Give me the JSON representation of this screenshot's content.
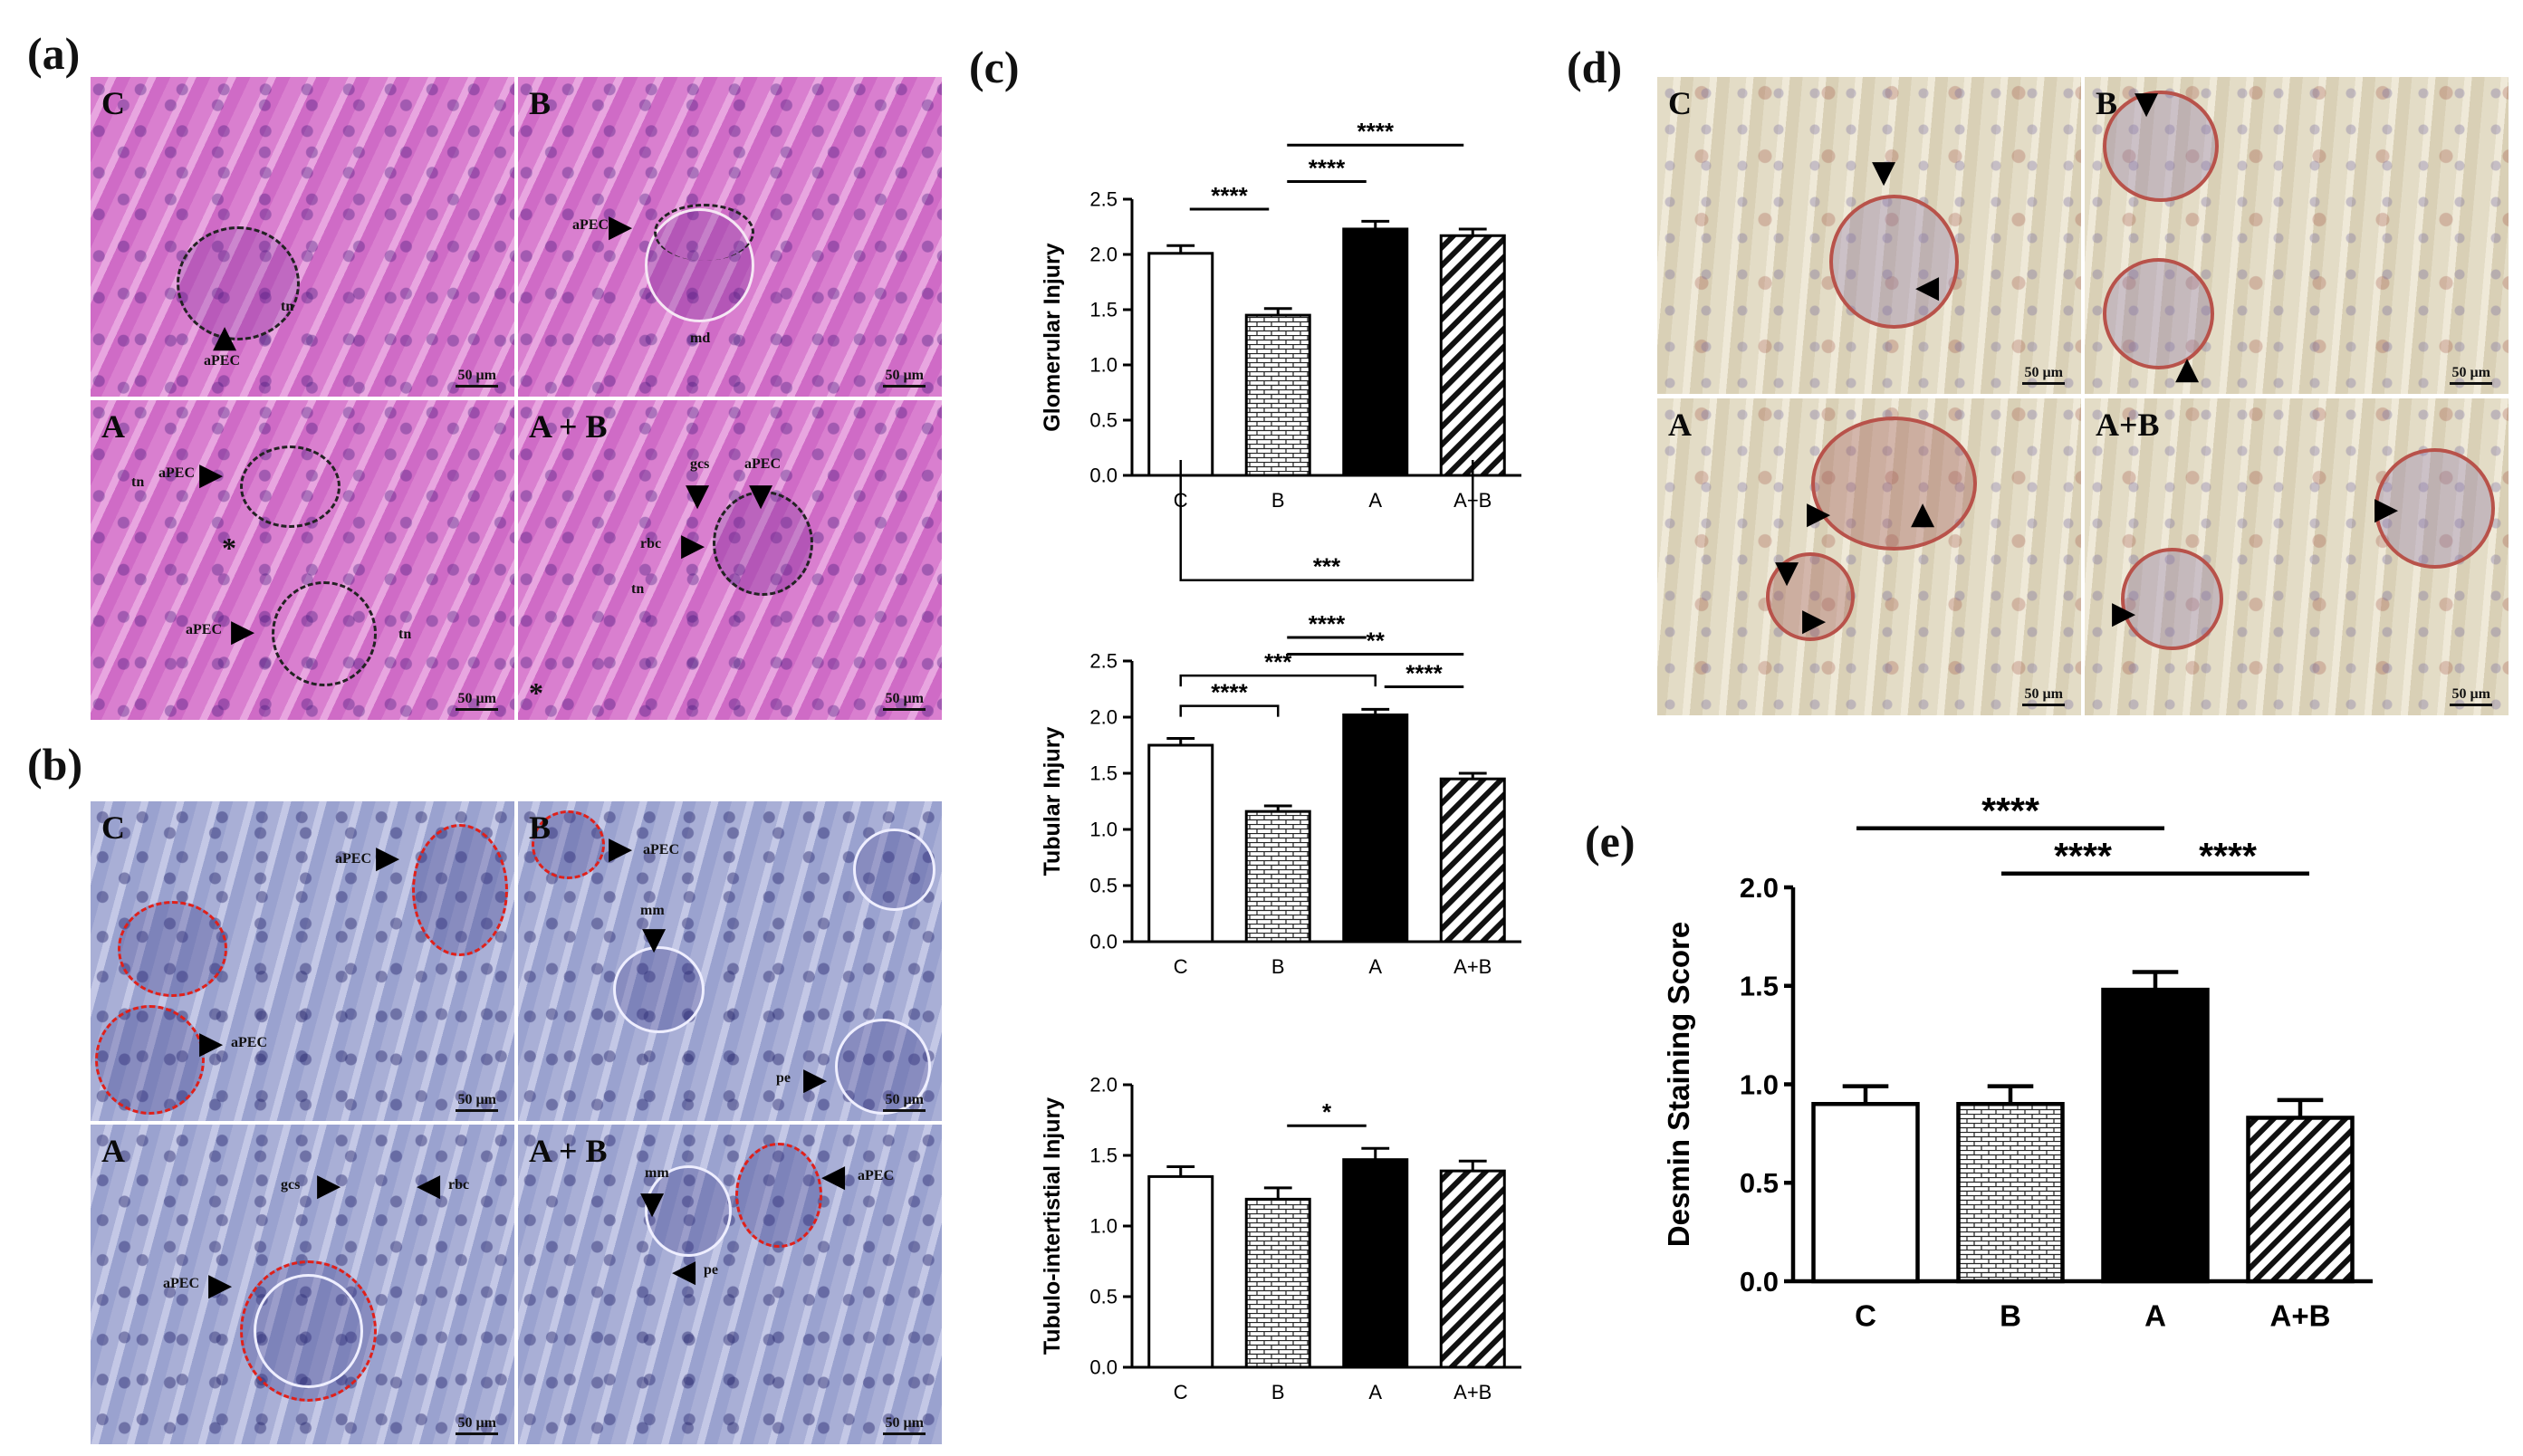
{
  "panels": {
    "a": {
      "letter": "(a)",
      "tiles": [
        {
          "label": "C",
          "scale": "50 µm",
          "annos": [
            "aPEC",
            "tn"
          ]
        },
        {
          "label": "B",
          "scale": "50 µm",
          "annos": [
            "aPEC",
            "md"
          ]
        },
        {
          "label": "A",
          "scale": "50 µm",
          "annos": [
            "aPEC",
            "tn",
            "aPEC",
            "tn",
            "*"
          ]
        },
        {
          "label": "A + B",
          "scale": "50 µm",
          "annos": [
            "gcs",
            "aPEC",
            "rbc",
            "tn",
            "*"
          ]
        }
      ]
    },
    "b": {
      "letter": "(b)",
      "tiles": [
        {
          "label": "C",
          "scale": "50 µm",
          "annos": [
            "aPEC",
            "aPEC"
          ]
        },
        {
          "label": "B",
          "scale": "50 µm",
          "annos": [
            "aPEC",
            "mm",
            "pe"
          ]
        },
        {
          "label": "A",
          "scale": "50 µm",
          "annos": [
            "gcs",
            "rbc",
            "aPEC"
          ]
        },
        {
          "label": "A + B",
          "scale": "50 µm",
          "annos": [
            "mm",
            "aPEC",
            "pe"
          ]
        }
      ]
    },
    "c": {
      "letter": "(c)"
    },
    "d": {
      "letter": "(d)",
      "tiles": [
        {
          "label": "C",
          "scale": "50 µm"
        },
        {
          "label": "B",
          "scale": "50 µm"
        },
        {
          "label": "A",
          "scale": "50 µm"
        },
        {
          "label": "A+B",
          "scale": "50 µm"
        }
      ]
    },
    "e": {
      "letter": "(e)"
    }
  },
  "colors": {
    "he": "#d97fcf",
    "pas": "#a9afd6",
    "desmin": "#e3dcc6",
    "bar_dark": "#000000",
    "bar_light": "#ffffff",
    "dashed_red": "#e0201a"
  },
  "chart_data": [
    {
      "type": "bar",
      "panel": "c",
      "ylabel": "Glomerular Injury",
      "categories": [
        "C",
        "B",
        "A",
        "A+B"
      ],
      "values": [
        2.01,
        1.45,
        2.23,
        2.17
      ],
      "errors": [
        0.07,
        0.06,
        0.07,
        0.06
      ],
      "fills": [
        "white",
        "brick",
        "black",
        "hatch"
      ],
      "ylim": [
        0,
        2.5
      ],
      "yticks": [
        "0.0",
        "0.5",
        "1.0",
        "1.5",
        "2.0",
        "2.5"
      ],
      "significance": [
        {
          "from": 0,
          "to": 1,
          "label": "****",
          "style": "line"
        },
        {
          "from": 1,
          "to": 2,
          "label": "****",
          "style": "line"
        },
        {
          "from": 1,
          "to": 3,
          "label": "****",
          "style": "line"
        }
      ]
    },
    {
      "type": "bar",
      "panel": "c",
      "ylabel": "Tubular Injury",
      "categories": [
        "C",
        "B",
        "A",
        "A+B"
      ],
      "values": [
        1.75,
        1.16,
        2.02,
        1.45
      ],
      "errors": [
        0.06,
        0.05,
        0.05,
        0.05
      ],
      "fills": [
        "white",
        "brick",
        "black",
        "hatch"
      ],
      "ylim": [
        0,
        2.5
      ],
      "yticks": [
        "0.0",
        "0.5",
        "1.0",
        "1.5",
        "2.0",
        "2.5"
      ],
      "significance": [
        {
          "from": 0,
          "to": 3,
          "label": "***",
          "style": "bracket"
        },
        {
          "from": 1,
          "to": 2,
          "label": "****",
          "style": "line"
        },
        {
          "from": 1,
          "to": 3,
          "label": "**",
          "style": "line"
        },
        {
          "from": 0,
          "to": 2,
          "label": "***",
          "style": "bracket"
        },
        {
          "from": 2,
          "to": 3,
          "label": "****",
          "style": "line"
        },
        {
          "from": 0,
          "to": 1,
          "label": "****",
          "style": "bracket"
        }
      ]
    },
    {
      "type": "bar",
      "panel": "c",
      "ylabel": "Tubulo-intertistial Injury",
      "categories": [
        "C",
        "B",
        "A",
        "A+B"
      ],
      "values": [
        1.35,
        1.19,
        1.47,
        1.39
      ],
      "errors": [
        0.07,
        0.08,
        0.08,
        0.07
      ],
      "fills": [
        "white",
        "brick",
        "black",
        "hatch"
      ],
      "ylim": [
        0,
        2.0
      ],
      "yticks": [
        "0.0",
        "0.5",
        "1.0",
        "1.5",
        "2.0"
      ],
      "significance": [
        {
          "from": 1,
          "to": 2,
          "label": "*",
          "style": "line"
        }
      ]
    },
    {
      "type": "bar",
      "panel": "e",
      "ylabel": "Desmin Staining Score",
      "categories": [
        "C",
        "B",
        "A",
        "A+B"
      ],
      "values": [
        0.9,
        0.9,
        1.48,
        0.83
      ],
      "errors": [
        0.09,
        0.09,
        0.09,
        0.09
      ],
      "fills": [
        "white",
        "brick",
        "black",
        "hatch"
      ],
      "ylim": [
        0,
        2.0
      ],
      "yticks": [
        "0.0",
        "0.5",
        "1.0",
        "1.5",
        "2.0"
      ],
      "significance": [
        {
          "from": 0,
          "to": 2,
          "label": "****",
          "style": "line"
        },
        {
          "from": 1,
          "to": 2,
          "label": "****",
          "style": "line"
        },
        {
          "from": 2,
          "to": 3,
          "label": "****",
          "style": "line"
        }
      ]
    }
  ]
}
